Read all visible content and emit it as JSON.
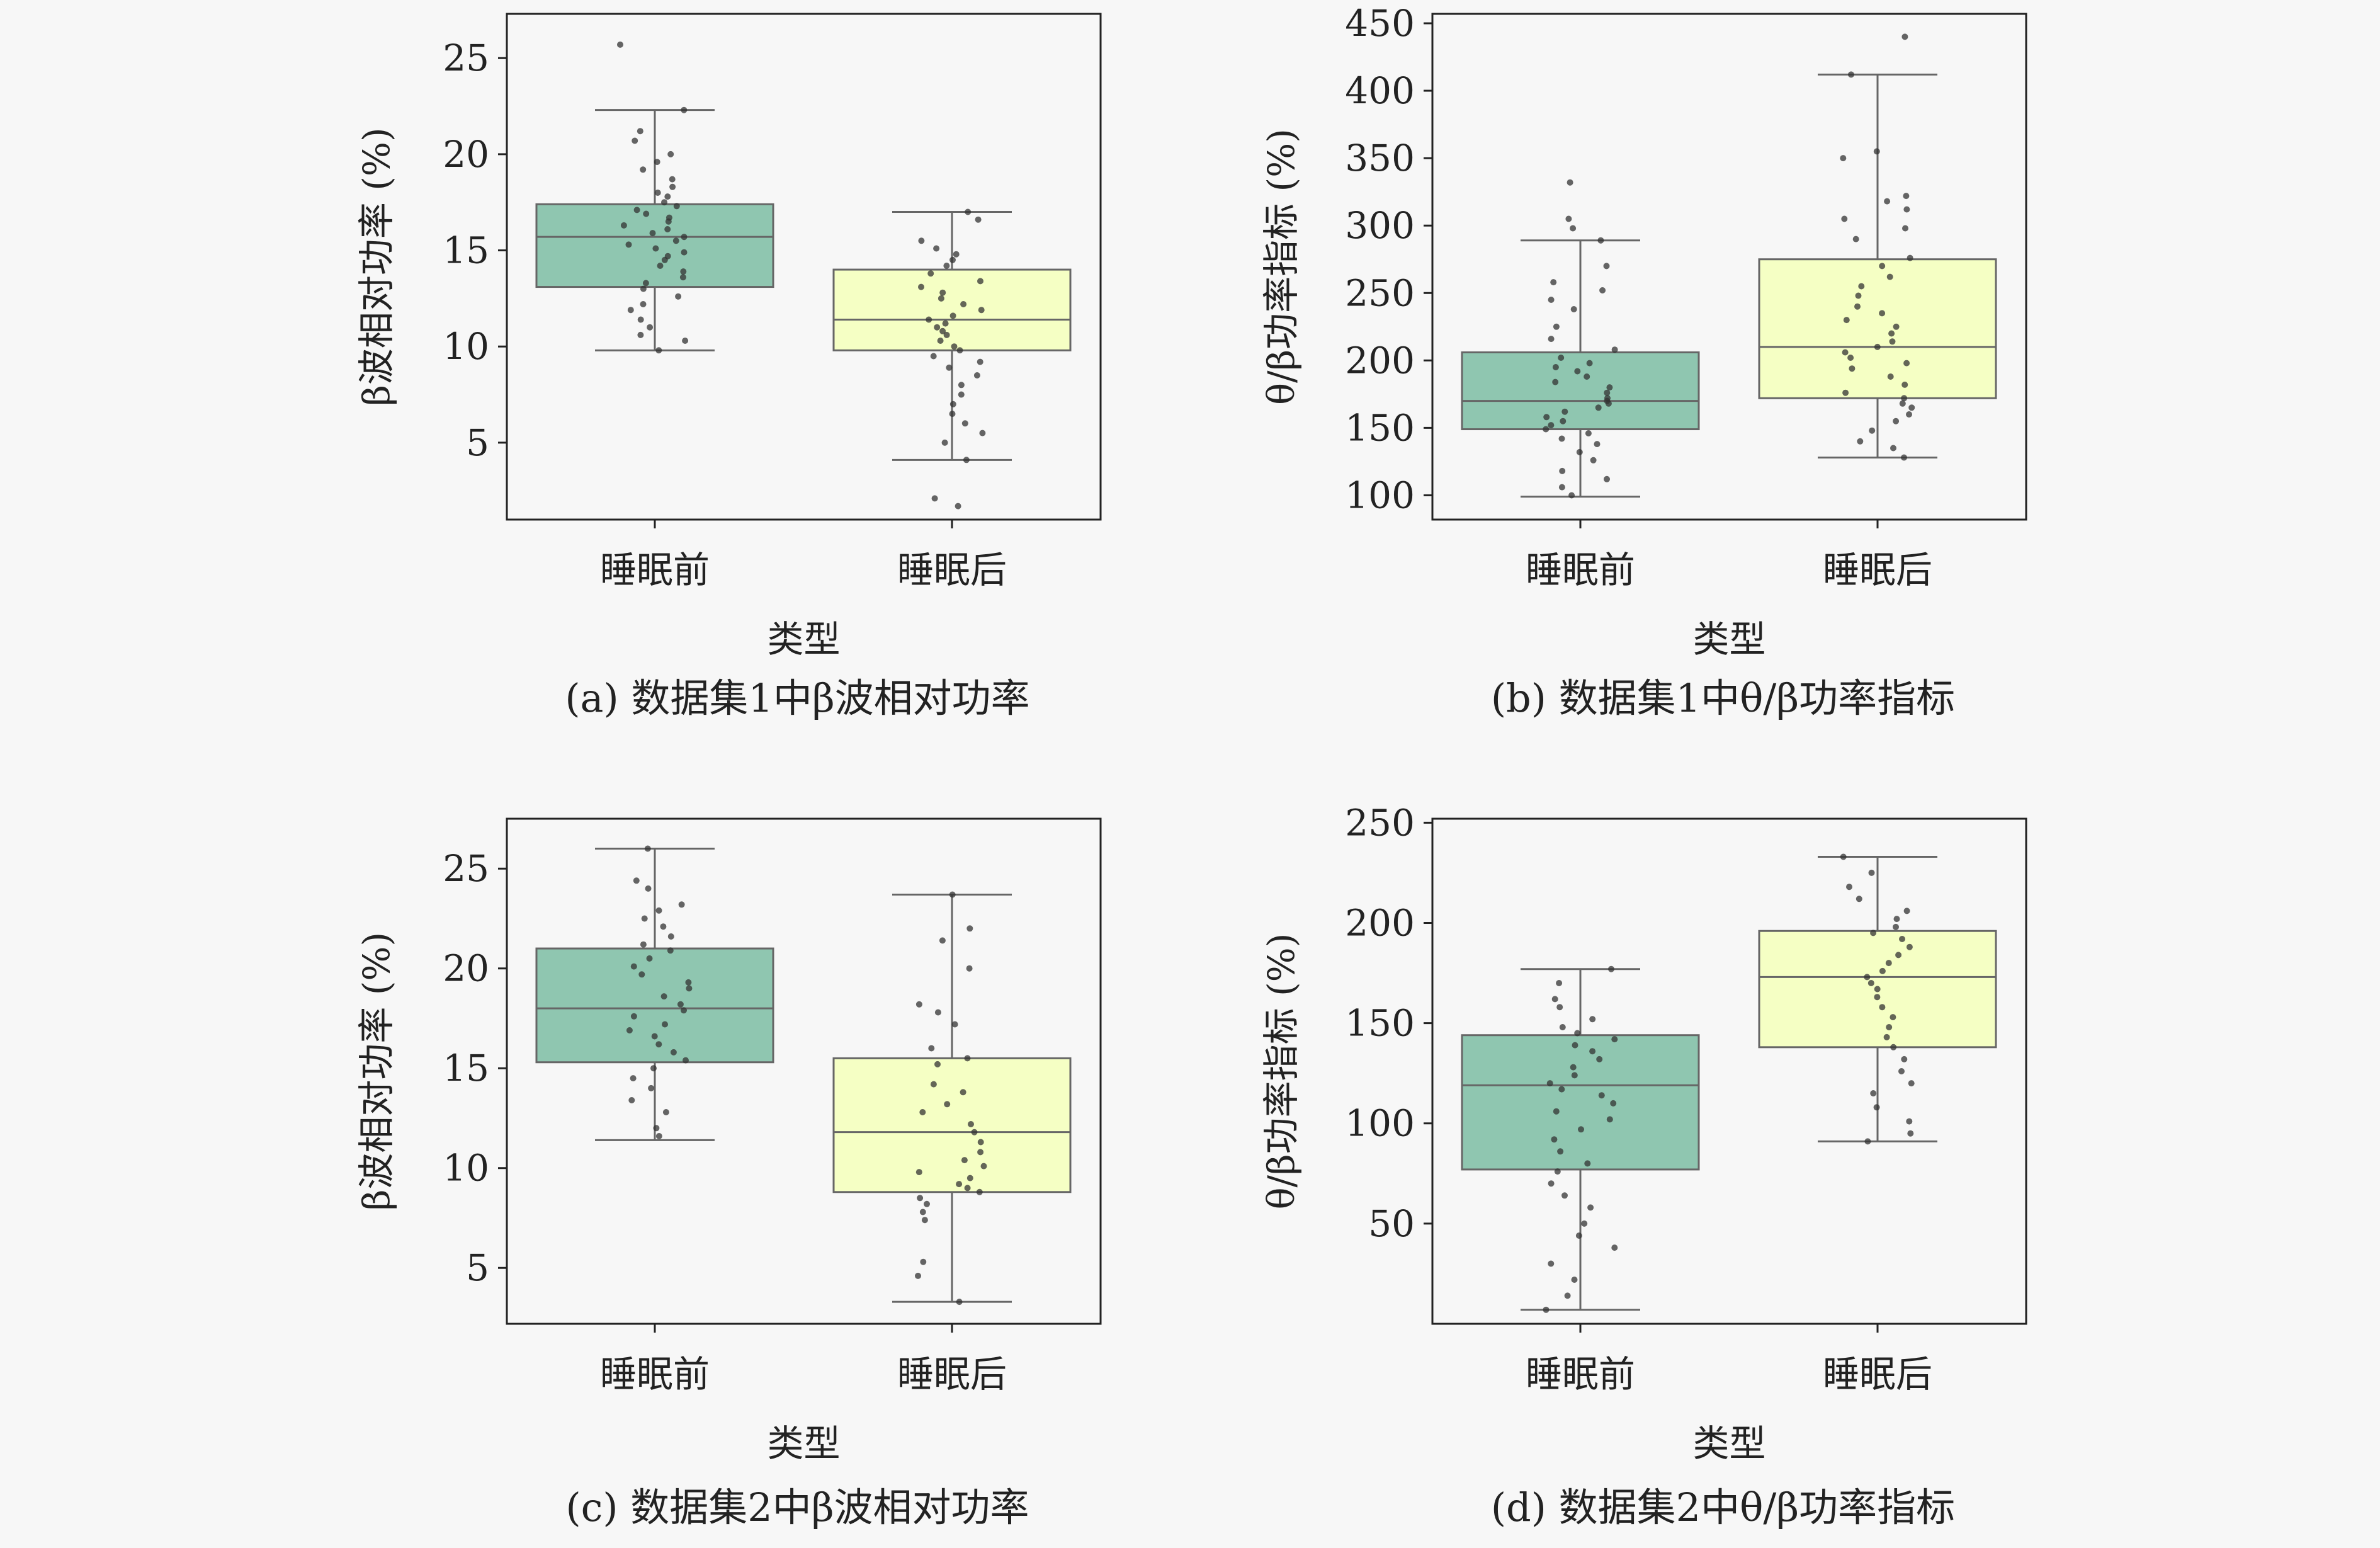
{
  "xlabel": "类型",
  "colors": {
    "before_fill": "#8fc6b0",
    "after_fill": "#f5ffc4",
    "box_stroke": "#666666",
    "point": "#333333",
    "axes": "#222222",
    "background": "#f7f7f7"
  },
  "chart_data": [
    {
      "type": "box",
      "caption": "(a) 数据集1中β波相对功率",
      "ylabel": "β波相对功率 (%)",
      "categories": [
        "睡眠前",
        "睡眠后"
      ],
      "xlabel": "类型",
      "ylim": [
        1,
        27.3
      ],
      "yticks": [
        5,
        10,
        15,
        20,
        25
      ],
      "grid": false,
      "boxes": [
        {
          "category": "睡眠前",
          "whislo": 9.8,
          "q1": 13.1,
          "med": 15.7,
          "q3": 17.4,
          "whishi": 22.3,
          "points": [
            25.7,
            22.3,
            21.2,
            20.7,
            20.0,
            19.6,
            19.2,
            18.7,
            18.3,
            18.0,
            17.8,
            17.5,
            17.3,
            17.1,
            16.9,
            16.7,
            16.5,
            16.3,
            16.1,
            15.9,
            15.7,
            15.5,
            15.3,
            15.1,
            14.9,
            14.7,
            14.5,
            14.2,
            13.9,
            13.6,
            13.3,
            13.0,
            12.6,
            12.2,
            11.9,
            11.4,
            11.0,
            10.6,
            10.3,
            9.8
          ]
        },
        {
          "category": "睡眠后",
          "whislo": 4.1,
          "q1": 9.8,
          "med": 11.4,
          "q3": 14.0,
          "whishi": 17.0,
          "points": [
            17.0,
            16.6,
            15.5,
            15.1,
            14.8,
            14.5,
            14.2,
            13.8,
            13.4,
            13.1,
            12.8,
            12.5,
            12.2,
            11.9,
            11.6,
            11.4,
            11.2,
            11.0,
            10.8,
            10.6,
            10.3,
            10.0,
            9.8,
            9.5,
            9.2,
            8.9,
            8.5,
            8.0,
            7.5,
            7.0,
            6.5,
            6.0,
            5.5,
            5.0,
            4.1,
            2.1,
            1.7
          ]
        }
      ]
    },
    {
      "type": "box",
      "caption": "(b) 数据集1中θ/β功率指标",
      "ylabel": "θ/β功率指标 (%)",
      "categories": [
        "睡眠前",
        "睡眠后"
      ],
      "xlabel": "类型",
      "ylim": [
        82,
        457
      ],
      "yticks": [
        100,
        150,
        200,
        250,
        300,
        350,
        400,
        450
      ],
      "grid": false,
      "boxes": [
        {
          "category": "睡眠前",
          "whislo": 99,
          "q1": 149,
          "med": 170,
          "q3": 206,
          "whishi": 289,
          "points": [
            332,
            305,
            298,
            289,
            270,
            258,
            252,
            245,
            238,
            225,
            216,
            208,
            202,
            198,
            195,
            192,
            188,
            184,
            180,
            176,
            172,
            170,
            168,
            165,
            162,
            158,
            155,
            152,
            149,
            146,
            142,
            138,
            132,
            126,
            118,
            112,
            106,
            100
          ]
        },
        {
          "category": "睡眠后",
          "whislo": 128,
          "q1": 172,
          "med": 210,
          "q3": 275,
          "whishi": 412,
          "points": [
            440,
            412,
            355,
            350,
            322,
            318,
            312,
            305,
            298,
            290,
            276,
            270,
            262,
            255,
            248,
            240,
            235,
            230,
            225,
            220,
            214,
            210,
            206,
            202,
            198,
            194,
            188,
            182,
            176,
            172,
            168,
            165,
            160,
            155,
            148,
            140,
            135,
            128
          ]
        }
      ]
    },
    {
      "type": "box",
      "caption": "(c) 数据集2中β波相对功率",
      "ylabel": "β波相对功率 (%)",
      "categories": [
        "睡眠前",
        "睡眠后"
      ],
      "xlabel": "类型",
      "ylim": [
        2.2,
        27.5
      ],
      "yticks": [
        5,
        10,
        15,
        20,
        25
      ],
      "grid": false,
      "boxes": [
        {
          "category": "睡眠前",
          "whislo": 11.4,
          "q1": 15.3,
          "med": 18.0,
          "q3": 21.0,
          "whishi": 26.0,
          "points": [
            26.0,
            24.4,
            24.0,
            23.2,
            22.9,
            22.5,
            22.1,
            21.6,
            21.2,
            20.9,
            20.5,
            20.1,
            19.7,
            19.3,
            19.0,
            18.6,
            18.2,
            17.9,
            17.6,
            17.2,
            16.9,
            16.6,
            16.2,
            15.8,
            15.4,
            15.0,
            14.5,
            14.0,
            13.4,
            12.8,
            12.0,
            11.6
          ]
        },
        {
          "category": "睡眠后",
          "whislo": 3.3,
          "q1": 8.8,
          "med": 11.8,
          "q3": 15.5,
          "whishi": 23.7,
          "points": [
            23.7,
            22.0,
            21.4,
            20.0,
            18.2,
            17.8,
            17.2,
            16.0,
            15.5,
            15.2,
            14.2,
            13.8,
            13.2,
            12.8,
            12.2,
            11.8,
            11.3,
            10.8,
            10.4,
            10.1,
            9.8,
            9.5,
            9.2,
            9.0,
            8.8,
            8.5,
            8.2,
            7.8,
            7.4,
            5.3,
            4.6,
            3.3
          ]
        }
      ]
    },
    {
      "type": "box",
      "caption": "(d) 数据集2中θ/β功率指标",
      "ylabel": "θ/β功率指标 (%)",
      "categories": [
        "睡眠前",
        "睡眠后"
      ],
      "xlabel": "类型",
      "ylim": [
        0,
        252
      ],
      "yticks": [
        50,
        100,
        150,
        200,
        250
      ],
      "grid": false,
      "boxes": [
        {
          "category": "睡眠前",
          "whislo": 7,
          "q1": 77,
          "med": 119,
          "q3": 144,
          "whishi": 177,
          "points": [
            177,
            170,
            162,
            158,
            152,
            148,
            145,
            142,
            139,
            136,
            132,
            128,
            124,
            120,
            117,
            114,
            110,
            106,
            102,
            97,
            92,
            86,
            80,
            76,
            70,
            64,
            58,
            50,
            44,
            38,
            30,
            22,
            14,
            7
          ]
        },
        {
          "category": "睡眠后",
          "whislo": 91,
          "q1": 138,
          "med": 173,
          "q3": 196,
          "whishi": 233,
          "points": [
            233,
            225,
            218,
            212,
            206,
            202,
            198,
            195,
            192,
            188,
            184,
            180,
            176,
            173,
            170,
            167,
            163,
            158,
            153,
            148,
            143,
            138,
            132,
            126,
            120,
            115,
            108,
            101,
            95,
            91
          ]
        }
      ]
    }
  ]
}
